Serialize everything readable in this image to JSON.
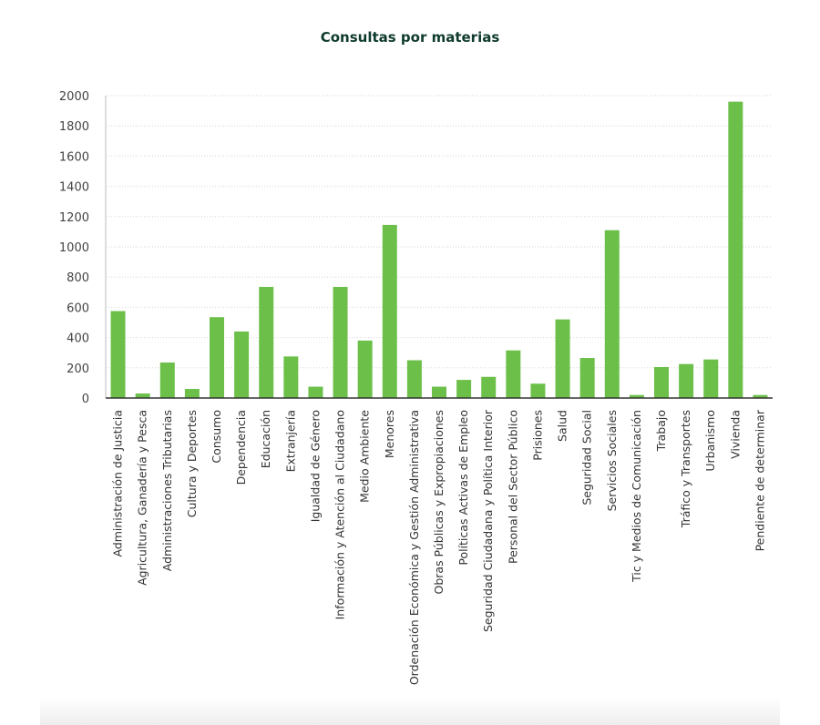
{
  "chart_data": {
    "type": "bar",
    "title": "Consultas por materias",
    "xlabel": "",
    "ylabel": "",
    "ylim": [
      0,
      2000
    ],
    "yticks": [
      0,
      200,
      400,
      600,
      800,
      1000,
      1200,
      1400,
      1600,
      1800,
      2000
    ],
    "grid": true,
    "legend": "none",
    "bar_color": "#6cc04a",
    "categories": [
      "Administración de Justicia",
      "Agricultura, Ganadería y Pesca",
      "Administraciones Tributarias",
      "Cultura y Deportes",
      "Consumo",
      "Dependencia",
      "Educación",
      "Extranjería",
      "Igualdad de Género",
      "Información y Atención al Ciudadano",
      "Medio Ambiente",
      "Menores",
      "Ordenación Económica y Gestión Administrativa",
      "Obras Públicas y Expropiaciones",
      "Políticas Activas de Empleo",
      "Seguridad Ciudadana y Política Interior",
      "Personal del Sector Público",
      "Prisiones",
      "Salud",
      "Seguridad Social",
      "Servicios Sociales",
      "Tic y Medios de Comunicación",
      "Trabajo",
      "Tráfico y Transportes",
      "Urbanismo",
      "Vivienda",
      "Pendiente de determinar"
    ],
    "values": [
      575,
      30,
      235,
      60,
      535,
      440,
      735,
      275,
      75,
      735,
      380,
      1145,
      250,
      75,
      120,
      140,
      315,
      95,
      520,
      265,
      1110,
      20,
      205,
      225,
      255,
      1960,
      20
    ]
  }
}
